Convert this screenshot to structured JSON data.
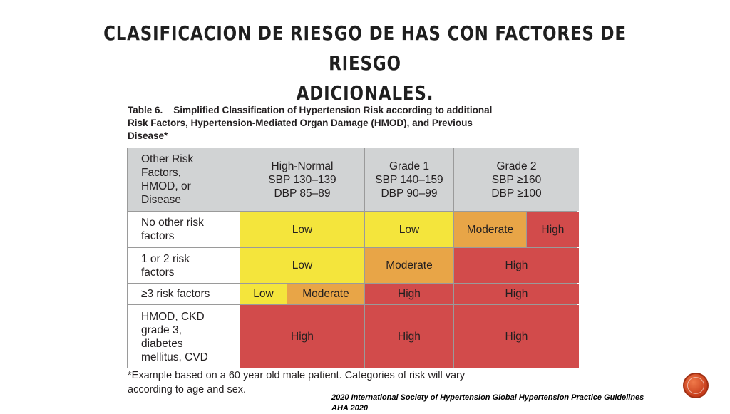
{
  "slide": {
    "title_line1": "CLASIFICACION DE RIESGO  DE HAS  CON FACTORES DE RIESGO",
    "title_line2": "ADICIONALES."
  },
  "table": {
    "caption_line1": "Table 6.    Simplified Classification of Hypertension Risk according to additional",
    "caption_line2": "Risk Factors, Hypertension-Mediated Organ Damage (HMOD), and Previous",
    "caption_line3": "Disease*",
    "header": {
      "col0": [
        "Other Risk",
        "Factors,",
        "HMOD, or",
        "Disease"
      ],
      "high_normal": [
        "High-Normal",
        "SBP 130–139",
        "DBP 85–89"
      ],
      "grade1": [
        "Grade 1",
        "SBP 140–159",
        "DBP 90–99"
      ],
      "grade2": [
        "Grade 2",
        "SBP ≥160",
        "DBP ≥100"
      ]
    },
    "rows": {
      "r1": {
        "label": [
          "No other risk",
          "factors"
        ],
        "high_normal": "Low",
        "grade1": "Low",
        "grade2_a": "Moderate",
        "grade2_b": "High"
      },
      "r2": {
        "label": [
          "1 or 2 risk",
          "factors"
        ],
        "high_normal": "Low",
        "grade1": "Moderate",
        "grade2": "High"
      },
      "r3": {
        "label": [
          "≥3 risk factors"
        ],
        "high_normal_a": "Low",
        "high_normal_b": "Moderate",
        "grade1": "High",
        "grade2": "High"
      },
      "r4": {
        "label": [
          "HMOD, CKD",
          "grade 3,",
          "diabetes",
          "mellitus, CVD"
        ],
        "high_normal": "High",
        "grade1": "High",
        "grade2": "High"
      }
    },
    "footnote_line1": "*Example based on a 60 year old male patient. Categories of risk will vary",
    "footnote_line2": "according to age and sex.",
    "colors": {
      "low": "#f4e53c",
      "moderate": "#e8a547",
      "high": "#d24b4b",
      "header": "#d1d3d4"
    }
  },
  "citation": {
    "line1": "2020 International Society of Hypertension Global Hypertension Practice Guidelines",
    "line2": "AHA 2020"
  }
}
